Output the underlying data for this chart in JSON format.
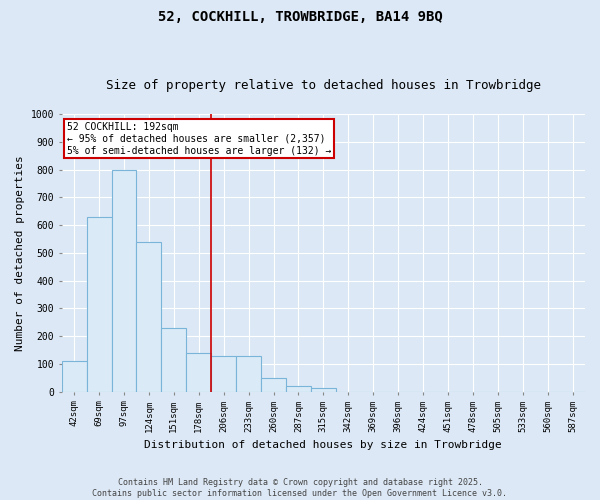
{
  "title": "52, COCKHILL, TROWBRIDGE, BA14 9BQ",
  "subtitle": "Size of property relative to detached houses in Trowbridge",
  "xlabel": "Distribution of detached houses by size in Trowbridge",
  "ylabel": "Number of detached properties",
  "bar_labels": [
    "42sqm",
    "69sqm",
    "97sqm",
    "124sqm",
    "151sqm",
    "178sqm",
    "206sqm",
    "233sqm",
    "260sqm",
    "287sqm",
    "315sqm",
    "342sqm",
    "369sqm",
    "396sqm",
    "424sqm",
    "451sqm",
    "478sqm",
    "505sqm",
    "533sqm",
    "560sqm",
    "587sqm"
  ],
  "bar_values": [
    110,
    630,
    800,
    540,
    230,
    140,
    130,
    130,
    50,
    20,
    15,
    0,
    0,
    0,
    0,
    0,
    0,
    0,
    0,
    0,
    0
  ],
  "bar_color": "#daeaf7",
  "bar_edge_color": "#7ab4d8",
  "vline_index": 5.5,
  "vline_color": "#cc0000",
  "ylim": [
    0,
    1000
  ],
  "yticks": [
    0,
    100,
    200,
    300,
    400,
    500,
    600,
    700,
    800,
    900,
    1000
  ],
  "annotation_text": "52 COCKHILL: 192sqm\n← 95% of detached houses are smaller (2,357)\n5% of semi-detached houses are larger (132) →",
  "annotation_box_color": "#ffffff",
  "annotation_edge_color": "#cc0000",
  "footnote": "Contains HM Land Registry data © Crown copyright and database right 2025.\nContains public sector information licensed under the Open Government Licence v3.0.",
  "bg_color": "#dce8f5",
  "plot_bg_color": "#dce8f5",
  "grid_color": "#ffffff",
  "title_fontsize": 10,
  "subtitle_fontsize": 9,
  "tick_fontsize": 6.5,
  "ylabel_fontsize": 8,
  "xlabel_fontsize": 8,
  "footnote_fontsize": 6,
  "footnote_color": "#444444"
}
